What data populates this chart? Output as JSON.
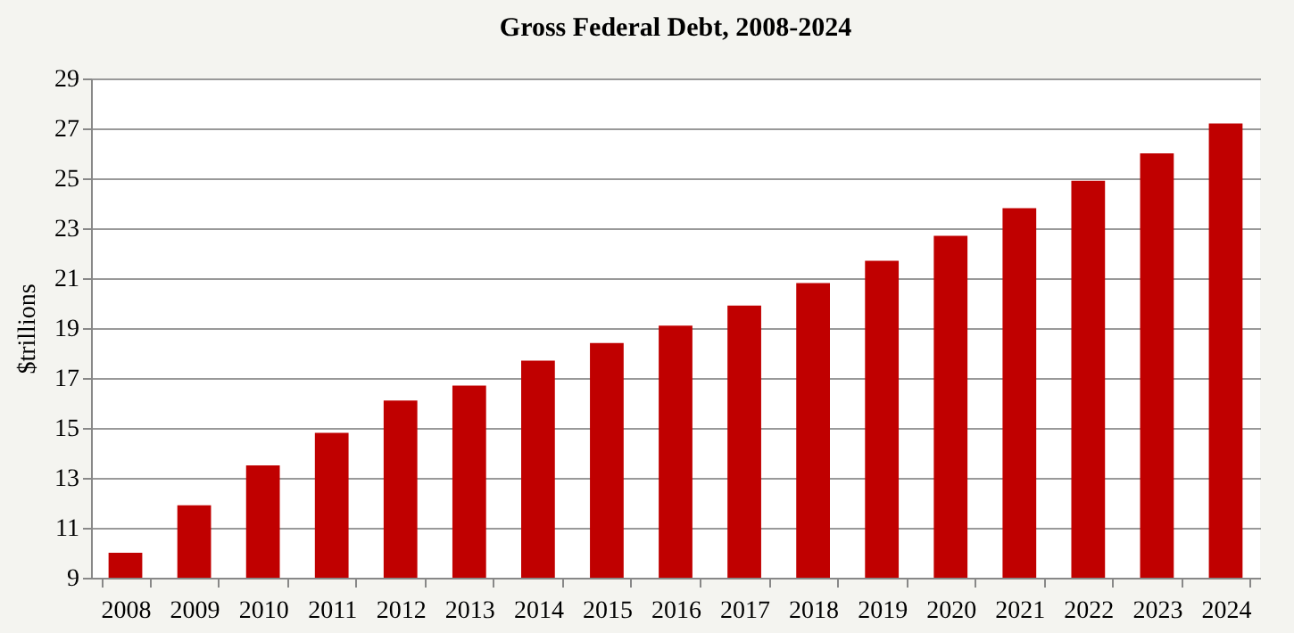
{
  "chart_data": {
    "type": "bar",
    "title": "Gross Federal Debt, 2008-2024",
    "ylabel": "$trillions",
    "categories": [
      "2008",
      "2009",
      "2010",
      "2011",
      "2012",
      "2013",
      "2014",
      "2015",
      "2016",
      "2017",
      "2018",
      "2019",
      "2020",
      "2021",
      "2022",
      "2023",
      "2024"
    ],
    "values": [
      10.0,
      11.9,
      13.5,
      14.8,
      16.1,
      16.7,
      17.7,
      18.4,
      19.1,
      19.9,
      20.8,
      21.7,
      22.7,
      23.8,
      24.9,
      26.0,
      27.2
    ],
    "color": "#c00000",
    "ylim": [
      9,
      29
    ],
    "yticks": [
      9,
      11,
      13,
      15,
      17,
      19,
      21,
      23,
      25,
      27,
      29
    ],
    "grid": "y"
  }
}
